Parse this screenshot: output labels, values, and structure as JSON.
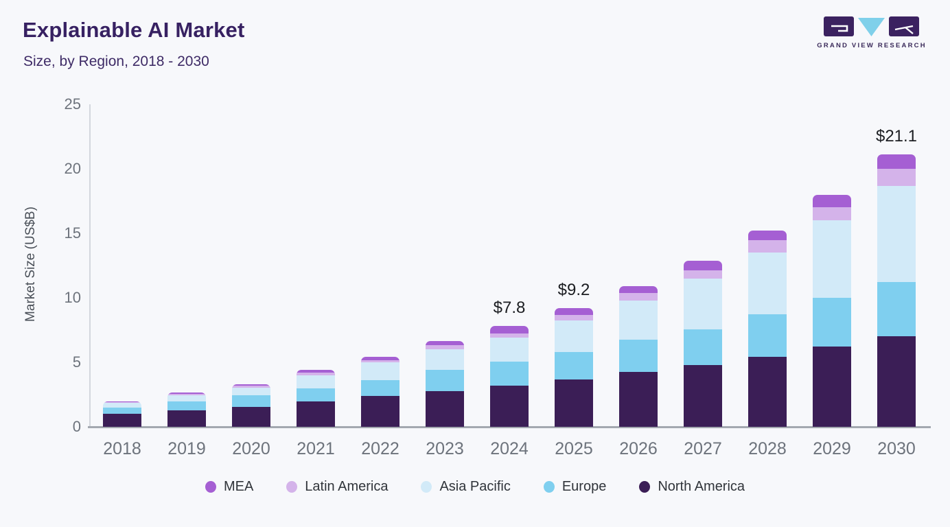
{
  "header": {
    "title": "Explainable AI Market",
    "subtitle": "Size, by Region, 2018 - 2030"
  },
  "logo": {
    "text": "GRAND VIEW RESEARCH",
    "dark_color": "#3b2260",
    "accent_color": "#7fd0ea"
  },
  "chart_data": {
    "type": "bar",
    "stacked": true,
    "title": "Explainable AI Market Size, by Region, 2018 - 2030",
    "xlabel": "",
    "ylabel": "Market Size (US$B)",
    "ylim": [
      0,
      25
    ],
    "yticks": [
      0,
      5,
      10,
      15,
      20,
      25
    ],
    "grid": false,
    "legend_position": "bottom",
    "categories": [
      "2018",
      "2019",
      "2020",
      "2021",
      "2022",
      "2023",
      "2024",
      "2025",
      "2026",
      "2027",
      "2028",
      "2029",
      "2030"
    ],
    "series": [
      {
        "name": "North America",
        "color": "#3b1e56",
        "values": [
          1.0,
          1.3,
          1.55,
          1.95,
          2.4,
          2.75,
          3.2,
          3.65,
          4.25,
          4.8,
          5.45,
          6.2,
          7.0
        ]
      },
      {
        "name": "Europe",
        "color": "#7fcfef",
        "values": [
          0.5,
          0.65,
          0.9,
          1.05,
          1.2,
          1.65,
          1.85,
          2.15,
          2.5,
          2.75,
          3.25,
          3.8,
          4.25
        ]
      },
      {
        "name": "Asia Pacific",
        "color": "#d2eaf8",
        "values": [
          0.35,
          0.5,
          0.6,
          1.0,
          1.4,
          1.6,
          1.85,
          2.45,
          3.05,
          3.95,
          4.8,
          6.0,
          7.4
        ]
      },
      {
        "name": "Latin America",
        "color": "#d4b3ea",
        "values": [
          0.05,
          0.1,
          0.12,
          0.2,
          0.15,
          0.35,
          0.35,
          0.4,
          0.55,
          0.65,
          0.95,
          1.0,
          1.35
        ]
      },
      {
        "name": "MEA",
        "color": "#a55fd3",
        "values": [
          0.05,
          0.1,
          0.13,
          0.2,
          0.3,
          0.3,
          0.55,
          0.55,
          0.55,
          0.7,
          0.75,
          1.0,
          1.1
        ]
      }
    ],
    "legend": [
      "MEA",
      "Latin America",
      "Asia Pacific",
      "Europe",
      "North America"
    ],
    "annotations": [
      {
        "year": "2024",
        "text": "$7.8",
        "total": 7.8
      },
      {
        "year": "2025",
        "text": "$9.2",
        "total": 9.2
      },
      {
        "year": "2030",
        "text": "$21.1",
        "total": 21.1
      }
    ]
  }
}
